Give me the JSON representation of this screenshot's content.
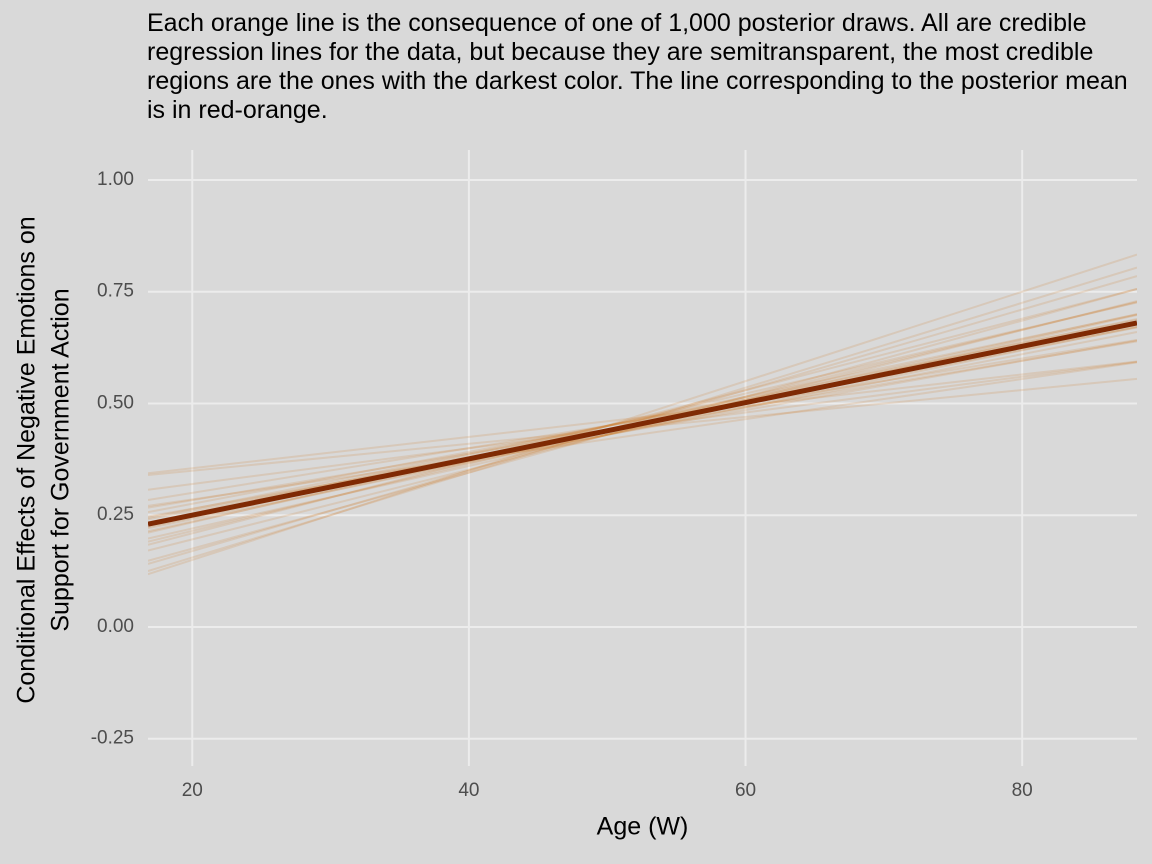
{
  "chart_data": {
    "type": "line",
    "title": "Each orange line is the consequence of one of 1,000 posterior draws. All are credible regression lines for the data, but because they are semitransparent, the most credible regions are the ones with the darkest color. The line corresponding to the posterior mean is in red-orange.",
    "x_label": "Age (W)",
    "y_label": [
      "Conditional Effects of Negative Emotions on",
      "Support for Government Action"
    ],
    "x": [
      16.8,
      88.3
    ],
    "xlim": [
      16.8,
      88.3
    ],
    "ylim": [
      -0.311,
      1.067
    ],
    "xticks": [
      20,
      40,
      60,
      80
    ],
    "yticks": [
      -0.25,
      {
        "value": 0,
        "label": "0.00"
      },
      0.25,
      {
        "value": 0.5,
        "label": "0.50"
      },
      0.75,
      {
        "value": 1,
        "label": "1.00"
      }
    ],
    "grid": true,
    "series": [
      {
        "color": "rgba(204,110,20,0.16)",
        "values": [
          0.307,
          0.593
        ]
      },
      {
        "color": "rgba(204,110,20,0.16)",
        "values": [
          0.284,
          0.642
        ]
      },
      {
        "color": "rgba(204,110,20,0.16)",
        "values": [
          0.247,
          0.641
        ]
      },
      {
        "color": "rgba(204,110,20,0.16)",
        "values": [
          0.241,
          0.67
        ]
      },
      {
        "color": "rgba(204,110,20,0.16)",
        "values": [
          0.234,
          0.699
        ]
      },
      {
        "color": "rgba(204,110,20,0.16)",
        "values": [
          0.198,
          0.698
        ]
      },
      {
        "color": "rgba(204,110,20,0.16)",
        "values": [
          0.191,
          0.727
        ]
      },
      {
        "color": "rgba(204,110,20,0.16)",
        "values": [
          0.184,
          0.756
        ]
      },
      {
        "color": "rgba(204,110,20,0.16)",
        "values": [
          0.148,
          0.756
        ]
      },
      {
        "color": "rgba(204,110,20,0.16)",
        "values": [
          0.141,
          0.785
        ]
      },
      {
        "color": "rgba(204,110,20,0.16)",
        "values": [
          0.344,
          0.594
        ]
      },
      {
        "color": "rgba(204,110,20,0.16)",
        "values": [
          0.271,
          0.592
        ]
      },
      {
        "color": "rgba(204,110,20,0.16)",
        "values": [
          0.267,
          0.639
        ]
      },
      {
        "color": "rgba(204,110,20,0.16)",
        "values": [
          0.257,
          0.672
        ]
      },
      {
        "color": "rgba(204,110,20,0.16)",
        "values": [
          0.221,
          0.671
        ]
      },
      {
        "color": "rgba(204,110,20,0.16)",
        "values": [
          0.214,
          0.7
        ]
      },
      {
        "color": "rgba(204,110,20,0.16)",
        "values": [
          0.211,
          0.726
        ]
      },
      {
        "color": "rgba(204,110,20,0.16)",
        "values": [
          0.171,
          0.729
        ]
      },
      {
        "color": "rgba(204,110,20,0.16)",
        "values": [
          0.125,
          0.804
        ]
      },
      {
        "color": "rgba(204,110,20,0.16)",
        "values": [
          0.118,
          0.833
        ]
      },
      {
        "color": "rgba(204,110,20,0.16)",
        "values": [
          0.34,
          0.555
        ]
      },
      {
        "color": "rgba(204,110,20,0.16)",
        "values": [
          0.231,
          0.66
        ]
      },
      {
        "color": "rgba(204,110,20,0.16)",
        "values": [
          0.244,
          0.687
        ]
      },
      {
        "color": "rgba(204,110,20,0.16)",
        "values": [
          0.224,
          0.689
        ]
      },
      {
        "color": "#7f2a04",
        "values": [
          0.23,
          0.68
        ],
        "linewidth": 5
      }
    ]
  }
}
